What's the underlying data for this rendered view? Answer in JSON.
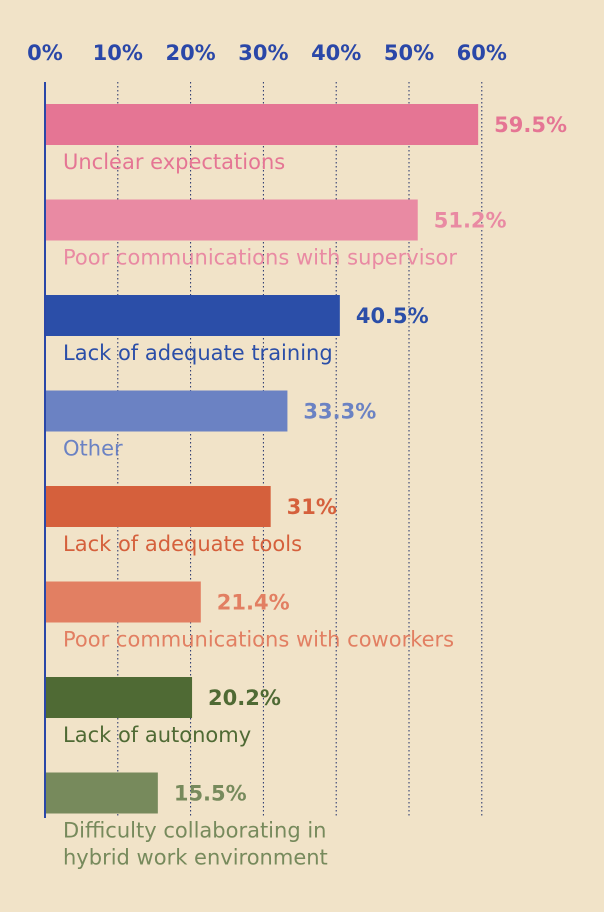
{
  "chart_data": {
    "type": "bar",
    "orientation": "horizontal",
    "title": "",
    "xlabel": "",
    "ylabel": "",
    "xlim": [
      0,
      60
    ],
    "grid": true,
    "x_ticks": [
      "0%",
      "10%",
      "20%",
      "30%",
      "40%",
      "50%",
      "60%"
    ],
    "categories": [
      "Unclear expectations",
      "Poor communications with supervisor",
      "Lack of adequate training",
      "Other",
      "Lack of adequate tools",
      "Poor communications with coworkers",
      "Lack of autonomy",
      "Difficulty collaborating in hybrid work environment"
    ],
    "values": [
      59.5,
      51.2,
      40.5,
      33.3,
      31,
      21.4,
      20.2,
      15.5
    ],
    "value_labels": [
      "59.5%",
      "51.2%",
      "40.5%",
      "33.3%",
      "31%",
      "21.4%",
      "20.2%",
      "15.5%"
    ],
    "colors": [
      "#e57594",
      "#e98aa3",
      "#2b4ea8",
      "#6b82c3",
      "#d5603c",
      "#e27f62",
      "#4f6a34",
      "#778a5c"
    ]
  }
}
